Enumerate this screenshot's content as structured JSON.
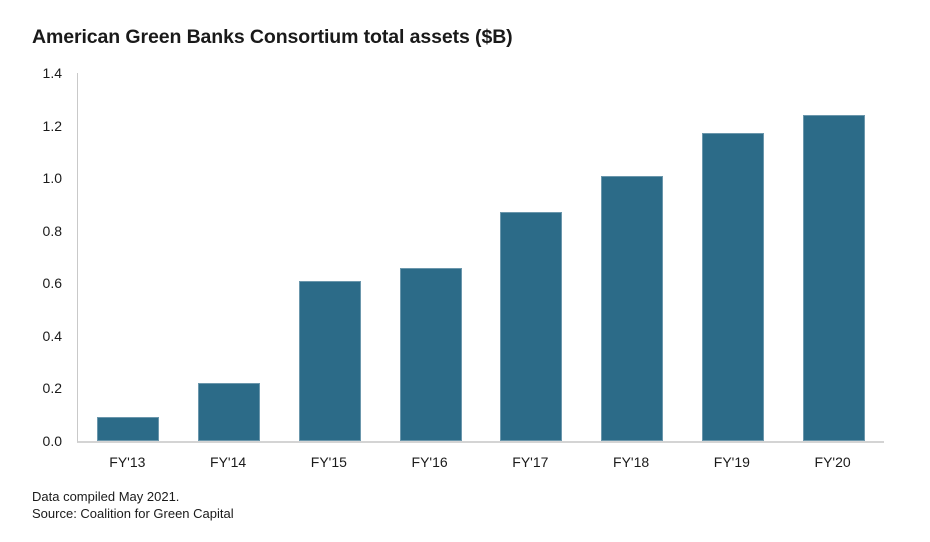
{
  "chart_data": {
    "type": "bar",
    "title": "American Green Banks Consortium total assets ($B)",
    "categories": [
      "FY'13",
      "FY'14",
      "FY'15",
      "FY'16",
      "FY'17",
      "FY'18",
      "FY'19",
      "FY'20"
    ],
    "values": [
      0.09,
      0.22,
      0.61,
      0.66,
      0.87,
      1.01,
      1.17,
      1.24
    ],
    "xlabel": "",
    "ylabel": "",
    "ylim": [
      0,
      1.4
    ],
    "yticks": [
      0.0,
      0.2,
      0.4,
      0.6,
      0.8,
      1.0,
      1.2,
      1.4
    ],
    "grid": false,
    "legend_position": "none",
    "bar_color": "#2c6b88",
    "axis_line_color": "#c9c9c9",
    "text_color": "#1a1a1a"
  },
  "footer": {
    "note1": "Data compiled May 2021.",
    "note2": "Source: Coalition for Green Capital"
  }
}
